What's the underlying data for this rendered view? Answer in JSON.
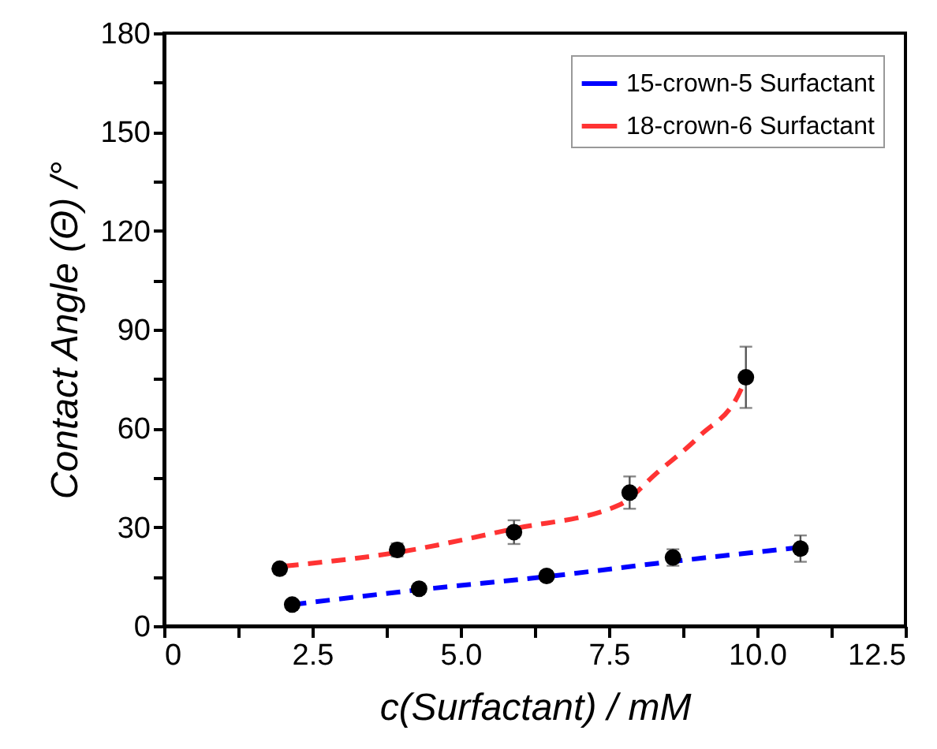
{
  "chart_data": {
    "type": "line",
    "xlabel": "c(Surfactant) / mM",
    "ylabel": "Contact Angle (Θ) /°",
    "xlim": [
      0,
      12.5
    ],
    "ylim": [
      0,
      180
    ],
    "xticks": [
      0,
      {
        "value": 1.25,
        "label": null
      },
      {
        "value": 2.5,
        "label": "2.5"
      },
      {
        "value": 3.75,
        "label": null
      },
      {
        "value": 5,
        "label": "5.0"
      },
      {
        "value": 6.25,
        "label": null
      },
      {
        "value": 7.5,
        "label": "7.5"
      },
      {
        "value": 8.75,
        "label": null
      },
      {
        "value": 10,
        "label": "10.0"
      },
      {
        "value": 11.25,
        "label": null
      },
      {
        "value": 12.5,
        "label": "12.5"
      }
    ],
    "yticks": [
      0,
      {
        "value": 15,
        "label": null
      },
      30,
      {
        "value": 45,
        "label": null
      },
      60,
      {
        "value": 75,
        "label": null
      },
      90,
      {
        "value": 105,
        "label": null
      },
      120,
      {
        "value": 135,
        "label": null
      },
      150,
      {
        "value": 165,
        "label": null
      },
      180
    ],
    "grid": false,
    "legend": "top right",
    "line_style": "dashed",
    "series": [
      {
        "name": "15-crown-5 Surfactant",
        "marker": "none",
        "color": "#0000ff",
        "x": [
          2.16,
          4.3,
          6.45,
          8.58,
          10.73
        ],
        "values": [
          6.5,
          11.0,
          15.0,
          19.6,
          23.9
        ]
      },
      {
        "name": "18-crown-6 Surfactant",
        "marker": "none",
        "color": "#ff3333",
        "x": [
          2.03,
          3.92,
          5.89,
          7.68,
          8.31,
          9.03,
          9.74,
          9.81
        ],
        "values": [
          18.2,
          22.3,
          29.5,
          36.8,
          46.5,
          57.7,
          72.3,
          75.5
        ]
      },
      {
        "type": "scatter",
        "marker": "circle",
        "color": "#000000",
        "x": [
          2.16,
          4.3,
          6.45,
          8.58,
          10.73
        ],
        "values": [
          6.5,
          11.3,
          15.2,
          20.8,
          23.5
        ],
        "errors": [
          1,
          1,
          1.5,
          2.5,
          4
        ]
      },
      {
        "type": "scatter",
        "marker": "circle",
        "color": "#000000",
        "x": [
          1.95,
          3.93,
          5.9,
          7.85,
          9.81
        ],
        "values": [
          17.4,
          23.1,
          28.5,
          40.5,
          75.5
        ],
        "errors": [
          1.5,
          2,
          3.6,
          4.9,
          9.3
        ]
      }
    ]
  }
}
